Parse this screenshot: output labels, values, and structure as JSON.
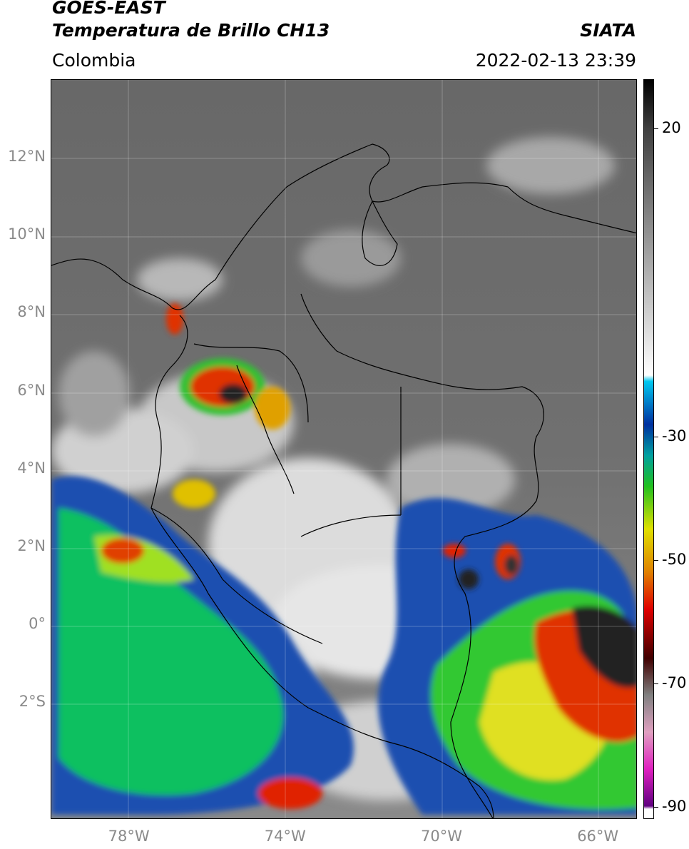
{
  "header": {
    "satellite": "GOES-EAST",
    "product": "Temperatura de Brillo CH13",
    "region": "Colombia",
    "organization": "SIATA",
    "timestamp": "2022-02-13 23:39"
  },
  "map": {
    "extent": {
      "lon_min": -80,
      "lon_max": -65,
      "lat_min": -5,
      "lat_max": 14
    },
    "lat_ticks": [
      {
        "value": 12,
        "label": "12°N"
      },
      {
        "value": 10,
        "label": "10°N"
      },
      {
        "value": 8,
        "label": "8°N"
      },
      {
        "value": 6,
        "label": "6°N"
      },
      {
        "value": 4,
        "label": "4°N"
      },
      {
        "value": 2,
        "label": "2°N"
      },
      {
        "value": 0,
        "label": "0°"
      },
      {
        "value": -2,
        "label": "2°S"
      }
    ],
    "lon_ticks": [
      {
        "value": -78,
        "label": "78°W"
      },
      {
        "value": -74,
        "label": "74°W"
      },
      {
        "value": -70,
        "label": "70°W"
      },
      {
        "value": -66,
        "label": "66°W"
      }
    ]
  },
  "colorbar": {
    "range": [
      -92,
      28
    ],
    "ticks": [
      {
        "value": 20,
        "label": "20"
      },
      {
        "value": -30,
        "label": "-30"
      },
      {
        "value": -50,
        "label": "-50"
      },
      {
        "value": -70,
        "label": "-70"
      },
      {
        "value": -90,
        "label": "-90"
      }
    ]
  },
  "colors": {
    "background_gray": "#6d6d6d",
    "cold_cloud": "#00c000",
    "very_cold_cloud": "#e00000",
    "coldest_cloud": "#202020"
  }
}
